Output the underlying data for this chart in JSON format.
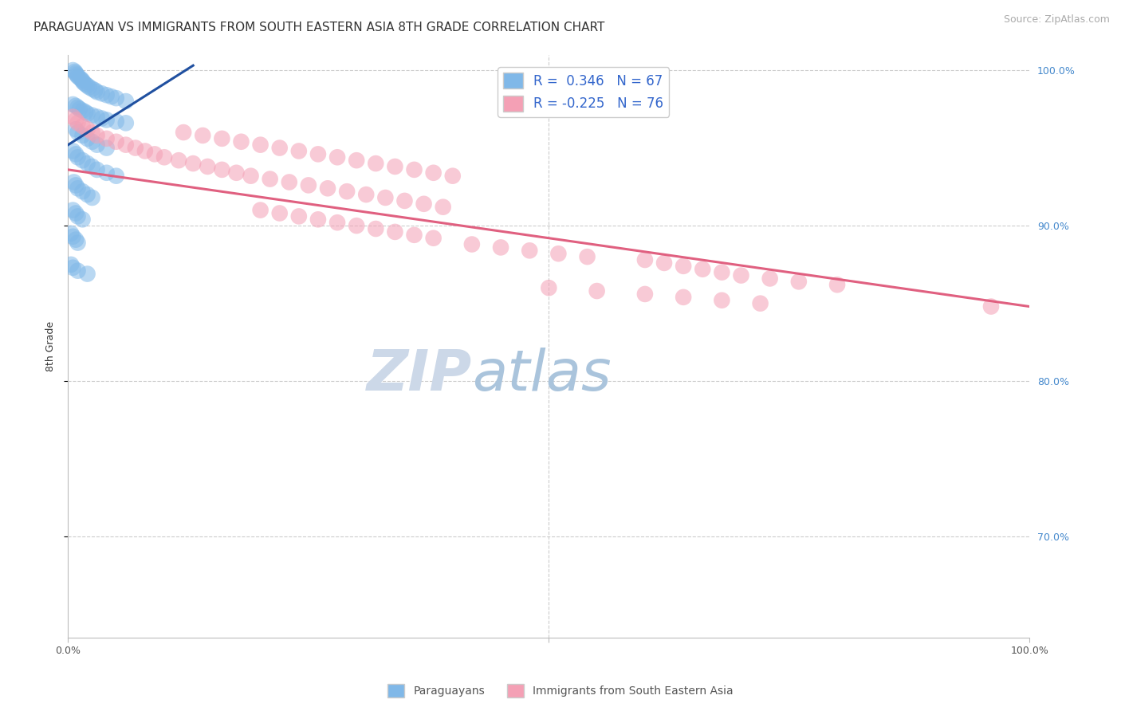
{
  "title": "PARAGUAYAN VS IMMIGRANTS FROM SOUTH EASTERN ASIA 8TH GRADE CORRELATION CHART",
  "source": "Source: ZipAtlas.com",
  "ylabel": "8th Grade",
  "xlim": [
    0.0,
    1.0
  ],
  "ylim": [
    0.635,
    1.01
  ],
  "blue_R": 0.346,
  "blue_N": 67,
  "pink_R": -0.225,
  "pink_N": 76,
  "blue_color": "#80b8e8",
  "pink_color": "#f4a0b5",
  "blue_line_color": "#2050a0",
  "pink_line_color": "#e06080",
  "watermark_zip": "ZIP",
  "watermark_atlas": "atlas",
  "blue_points_x": [
    0.005,
    0.007,
    0.008,
    0.009,
    0.01,
    0.012,
    0.014,
    0.015,
    0.016,
    0.018,
    0.02,
    0.022,
    0.025,
    0.028,
    0.03,
    0.035,
    0.04,
    0.045,
    0.05,
    0.06,
    0.005,
    0.008,
    0.01,
    0.012,
    0.015,
    0.018,
    0.02,
    0.025,
    0.03,
    0.035,
    0.04,
    0.05,
    0.06,
    0.008,
    0.01,
    0.015,
    0.02,
    0.025,
    0.03,
    0.04,
    0.005,
    0.008,
    0.01,
    0.015,
    0.02,
    0.025,
    0.03,
    0.04,
    0.05,
    0.006,
    0.008,
    0.01,
    0.015,
    0.02,
    0.025,
    0.005,
    0.008,
    0.01,
    0.015,
    0.003,
    0.005,
    0.008,
    0.01,
    0.003,
    0.005,
    0.01,
    0.02
  ],
  "blue_points_y": [
    1.0,
    0.999,
    0.998,
    0.997,
    0.996,
    0.995,
    0.994,
    0.993,
    0.992,
    0.991,
    0.99,
    0.989,
    0.988,
    0.987,
    0.986,
    0.985,
    0.984,
    0.983,
    0.982,
    0.98,
    0.978,
    0.977,
    0.976,
    0.975,
    0.974,
    0.973,
    0.972,
    0.971,
    0.97,
    0.969,
    0.968,
    0.967,
    0.966,
    0.962,
    0.96,
    0.958,
    0.956,
    0.954,
    0.952,
    0.95,
    0.948,
    0.946,
    0.944,
    0.942,
    0.94,
    0.938,
    0.936,
    0.934,
    0.932,
    0.928,
    0.926,
    0.924,
    0.922,
    0.92,
    0.918,
    0.91,
    0.908,
    0.906,
    0.904,
    0.895,
    0.893,
    0.891,
    0.889,
    0.875,
    0.873,
    0.871,
    0.869
  ],
  "pink_points_x": [
    0.005,
    0.008,
    0.01,
    0.015,
    0.02,
    0.025,
    0.03,
    0.04,
    0.05,
    0.06,
    0.07,
    0.08,
    0.09,
    0.1,
    0.115,
    0.13,
    0.145,
    0.16,
    0.175,
    0.19,
    0.21,
    0.23,
    0.25,
    0.27,
    0.29,
    0.31,
    0.33,
    0.35,
    0.37,
    0.39,
    0.12,
    0.14,
    0.16,
    0.18,
    0.2,
    0.22,
    0.24,
    0.26,
    0.28,
    0.3,
    0.32,
    0.34,
    0.36,
    0.38,
    0.4,
    0.2,
    0.22,
    0.24,
    0.26,
    0.28,
    0.3,
    0.32,
    0.34,
    0.36,
    0.38,
    0.42,
    0.45,
    0.48,
    0.51,
    0.54,
    0.6,
    0.62,
    0.64,
    0.66,
    0.68,
    0.7,
    0.73,
    0.76,
    0.8,
    0.5,
    0.55,
    0.6,
    0.64,
    0.68,
    0.72,
    0.96
  ],
  "pink_points_y": [
    0.97,
    0.968,
    0.966,
    0.964,
    0.962,
    0.96,
    0.958,
    0.956,
    0.954,
    0.952,
    0.95,
    0.948,
    0.946,
    0.944,
    0.942,
    0.94,
    0.938,
    0.936,
    0.934,
    0.932,
    0.93,
    0.928,
    0.926,
    0.924,
    0.922,
    0.92,
    0.918,
    0.916,
    0.914,
    0.912,
    0.96,
    0.958,
    0.956,
    0.954,
    0.952,
    0.95,
    0.948,
    0.946,
    0.944,
    0.942,
    0.94,
    0.938,
    0.936,
    0.934,
    0.932,
    0.91,
    0.908,
    0.906,
    0.904,
    0.902,
    0.9,
    0.898,
    0.896,
    0.894,
    0.892,
    0.888,
    0.886,
    0.884,
    0.882,
    0.88,
    0.878,
    0.876,
    0.874,
    0.872,
    0.87,
    0.868,
    0.866,
    0.864,
    0.862,
    0.86,
    0.858,
    0.856,
    0.854,
    0.852,
    0.85,
    0.848
  ],
  "blue_trend_x": [
    0.0,
    0.13
  ],
  "blue_trend_y": [
    0.952,
    1.003
  ],
  "pink_trend_x": [
    0.0,
    1.0
  ],
  "pink_trend_y": [
    0.936,
    0.848
  ],
  "right_y_ticks": [
    0.7,
    0.8,
    0.9,
    1.0
  ],
  "right_y_labels": [
    "70.0%",
    "80.0%",
    "90.0%",
    "100.0%"
  ],
  "right_tick_color": "#4488cc",
  "title_fontsize": 11,
  "axis_label_fontsize": 9,
  "tick_fontsize": 9,
  "source_fontsize": 9,
  "legend_fontsize": 12,
  "watermark_fontsize_zip": 52,
  "watermark_fontsize_atlas": 52,
  "watermark_color": "#ccd8e8",
  "background_color": "#ffffff",
  "gridline_color": "#cccccc"
}
